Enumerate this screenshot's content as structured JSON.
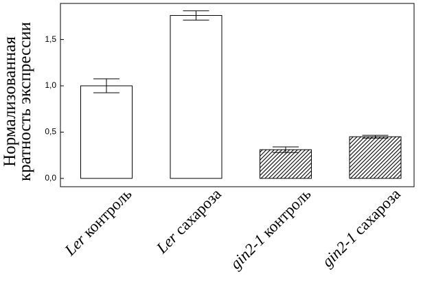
{
  "chart_data": {
    "type": "bar",
    "ylabel": [
      "Нормализованная",
      "кратность экспрессии"
    ],
    "categories": [
      "Ler контроль",
      "Ler сахароза",
      "gin2-1 контроль",
      "gin2-1 сахароза"
    ],
    "values": [
      1.0,
      1.76,
      0.31,
      0.45
    ],
    "errors": [
      0.075,
      0.05,
      0.03,
      0.015
    ],
    "hatch": [
      false,
      false,
      true,
      true
    ],
    "color": "#ffffff",
    "ylim": [
      -0.09,
      1.89
    ],
    "yticks": [
      {
        "value": 0,
        "label": "0,0"
      },
      {
        "value": 0.5,
        "label": "0,5"
      },
      {
        "value": 1.0,
        "label": "1,0"
      },
      {
        "value": 1.5,
        "label": "1,5"
      }
    ]
  }
}
